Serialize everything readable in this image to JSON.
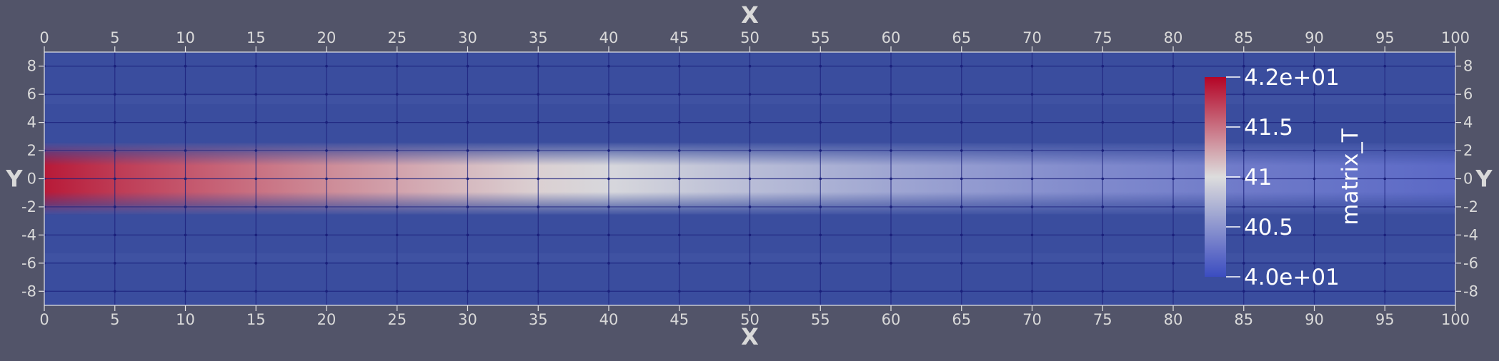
{
  "chart_data": {
    "type": "heatmap",
    "title": "",
    "xlabel": "X",
    "ylabel": "Y",
    "xlim": [
      0,
      100
    ],
    "ylim": [
      -9,
      9
    ],
    "x_ticks": [
      0,
      5,
      10,
      15,
      20,
      25,
      30,
      35,
      40,
      45,
      50,
      55,
      60,
      65,
      70,
      75,
      80,
      85,
      90,
      95,
      100
    ],
    "y_ticks": [
      8,
      6,
      4,
      2,
      0,
      -2,
      -4,
      -6,
      -8
    ],
    "grid": true,
    "colormap": "cool to warm",
    "colors": {
      "background": "#525469",
      "low": "#3b4cc0",
      "mid": "#dddddd",
      "high": "#b40426",
      "field_base": "#3a4d9e",
      "grid": "#1a1f7a",
      "axis": "#e6e6e6"
    },
    "colorbar": {
      "title": "matrix_T",
      "range": [
        40.0,
        42.0
      ],
      "tick_labels": [
        "4.2e+01",
        "41.5",
        "41",
        "40.5",
        "4.0e+01"
      ],
      "tick_values": [
        42.0,
        41.5,
        41.0,
        40.5,
        40.0
      ],
      "placement": "right"
    },
    "temperature_profile": {
      "x": [
        0,
        5,
        10,
        15,
        20,
        25,
        30,
        35,
        40,
        45,
        50,
        55,
        60,
        65,
        70,
        75,
        80,
        85,
        90,
        95,
        100
      ],
      "centerline": [
        41.9,
        41.75,
        41.62,
        41.5,
        41.38,
        41.27,
        41.16,
        41.06,
        40.96,
        40.87,
        40.78,
        40.7,
        40.62,
        40.55,
        40.48,
        40.42,
        40.37,
        40.32,
        40.28,
        40.24,
        40.2
      ],
      "plume_half_width_y": 2.0,
      "ambient": 40.0
    }
  }
}
